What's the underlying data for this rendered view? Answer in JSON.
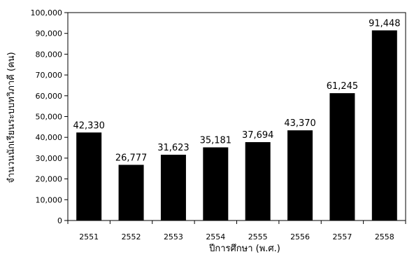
{
  "chart_data": {
    "type": "bar",
    "categories": [
      "2551",
      "2552",
      "2553",
      "2554",
      "2555",
      "2556",
      "2557",
      "2558"
    ],
    "values": [
      42330,
      26777,
      31623,
      35181,
      37694,
      43370,
      61245,
      91448
    ],
    "data_labels": [
      "42,330",
      "26,777",
      "31,623",
      "35,181",
      "37,694",
      "43,370",
      "61,245",
      "91,448"
    ],
    "title": "",
    "xlabel": "ปีการศึกษา (พ.ศ.)",
    "ylabel": "จำนวนนักเรียนระบบทวิภาคี (คน)",
    "ylim": [
      0,
      100000
    ],
    "yticks": [
      0,
      10000,
      20000,
      30000,
      40000,
      50000,
      60000,
      70000,
      80000,
      90000,
      100000
    ],
    "ytick_labels": [
      "0",
      "10,000",
      "20,000",
      "30,000",
      "40,000",
      "50,000",
      "60,000",
      "70,000",
      "80,000",
      "90,000",
      "100,000"
    ],
    "grid": false,
    "legend": "none",
    "bar_color": "#000000"
  }
}
